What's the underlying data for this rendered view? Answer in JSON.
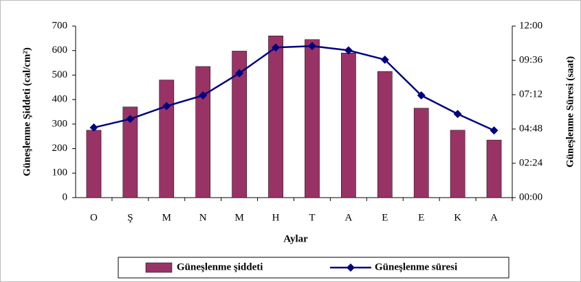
{
  "chart_data": {
    "type": "bar",
    "x_label": "Aylar",
    "y_label": "Güneşlenme Şiddeti (cal/cm²)",
    "y2_label": "Güneşlenme Süresi (saat)",
    "categories": [
      "O",
      "Ş",
      "M",
      "N",
      "M",
      "H",
      "T",
      "A",
      "E",
      "E",
      "K",
      "A"
    ],
    "series": [
      {
        "name": "Güneşlenme şiddeti",
        "type": "bar",
        "color": "#993366",
        "values": [
          275,
          370,
          480,
          535,
          598,
          660,
          645,
          590,
          515,
          365,
          275,
          235
        ]
      },
      {
        "name": "Güneşlenme süresi",
        "type": "line",
        "axis": "y2",
        "color": "#000080",
        "values": [
          4.9,
          5.5,
          6.4,
          7.15,
          8.7,
          10.5,
          10.6,
          10.3,
          9.65,
          7.15,
          5.85,
          4.7
        ]
      }
    ],
    "ylim": [
      0,
      700
    ],
    "yticks": [
      0,
      100,
      200,
      300,
      400,
      500,
      600,
      700
    ],
    "y2lim": [
      0,
      12
    ],
    "y2ticks": [
      {
        "value": 0,
        "label": "00:00"
      },
      {
        "value": 2.4,
        "label": "02:24"
      },
      {
        "value": 4.8,
        "label": "04:48"
      },
      {
        "value": 7.2,
        "label": "07:12"
      },
      {
        "value": 9.6,
        "label": "09:36"
      },
      {
        "value": 12,
        "label": "12:00"
      }
    ],
    "legend": "bottom"
  }
}
